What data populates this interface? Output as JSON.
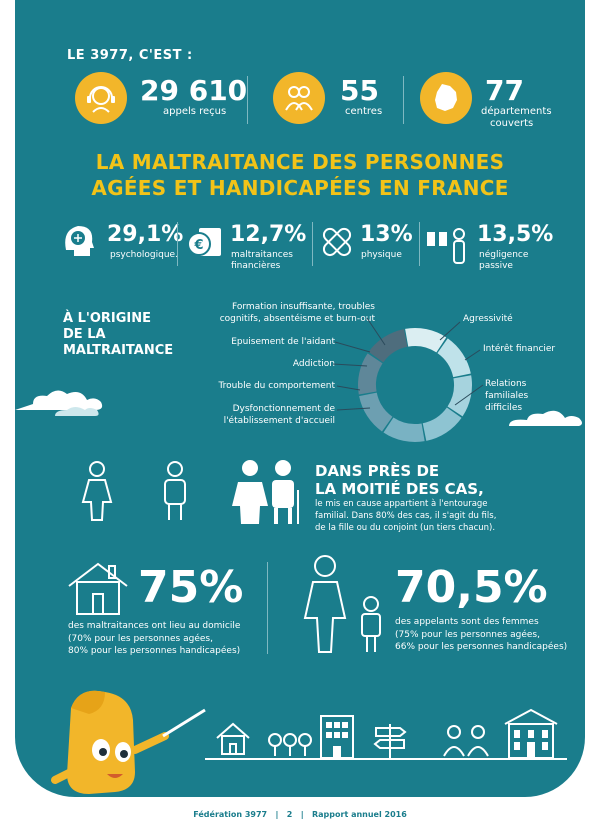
{
  "header": {
    "intro": "LE 3977,  C'EST :",
    "stats": [
      {
        "value": "29 610",
        "label": "appels reçus",
        "icon": "headset-icon"
      },
      {
        "value": "55",
        "label": "centres",
        "icon": "people-icon"
      },
      {
        "value": "77",
        "label_line1": "départements",
        "label_line2": "couverts",
        "icon": "france-map-icon"
      }
    ]
  },
  "title": {
    "line1": "LA MALTRAITANCE DES PERSONNES",
    "line2": "AGÉES ET HANDICAPÉES EN FRANCE"
  },
  "types": [
    {
      "value": "29,1%",
      "line1": "psychologique.",
      "line2": "",
      "icon": "brain-head-icon"
    },
    {
      "value": "12,7%",
      "line1": "maltraitances",
      "line2": "financières",
      "icon": "euro-money-icon"
    },
    {
      "value": "13%",
      "line1": "physique",
      "line2": "",
      "icon": "bandage-icon"
    },
    {
      "value": "13,5%",
      "line1": "négligence",
      "line2": "passive",
      "icon": "person-gift-icon"
    }
  ],
  "origin": {
    "title_line1": "À L'ORIGINE",
    "title_line2": "DE LA",
    "title_line3": "MALTRAITANCE",
    "left_labels": [
      {
        "line1": "Formation insuffisante, troubles",
        "line2": "cognitifs, absentéisme et burn-out"
      },
      {
        "line1": "Epuisement de l'aidant",
        "line2": ""
      },
      {
        "line1": "Addiction",
        "line2": ""
      },
      {
        "line1": "Trouble du comportement",
        "line2": ""
      },
      {
        "line1": "Dysfonctionnement de",
        "line2": "l'établissement d'accueil"
      }
    ],
    "right_labels": [
      {
        "line1": "Agressivité",
        "line2": "",
        "line3": ""
      },
      {
        "line1": "Intérêt financier",
        "line2": "",
        "line3": ""
      },
      {
        "line1": "Relations",
        "line2": "familiales",
        "line3": "difficiles"
      }
    ],
    "donut_colors": [
      "#dbeef2",
      "#bfe2ea",
      "#a6d3de",
      "#8ec4d2",
      "#79b2c3",
      "#6d9fb1",
      "#5f8799",
      "#4e6d7d"
    ]
  },
  "entourage": {
    "title_line1": "DANS PRÈS DE",
    "title_line2": "LA MOITIÉ DES CAS,",
    "text_line1": "le mis en cause appartient à l'entourage",
    "text_line2": "familial. Dans 80% des cas, il s'agit du fils,",
    "text_line3": "de la fille ou du conjoint (un tiers chacun)."
  },
  "domicile": {
    "value": "75%",
    "line1": "des maltraitances ont lieu au domicile",
    "line2": "(70% pour les personnes agées,",
    "line3": "80% pour les personnes handicapées)"
  },
  "femmes": {
    "value": "70,5%",
    "line1": "des appelants sont des femmes",
    "line2": "(75% pour les personnes agées,",
    "line3": "66% pour les personnes handicapées)"
  },
  "footer": {
    "org": "Fédération 3977",
    "page": "2",
    "report": "Rapport annuel 2016"
  }
}
